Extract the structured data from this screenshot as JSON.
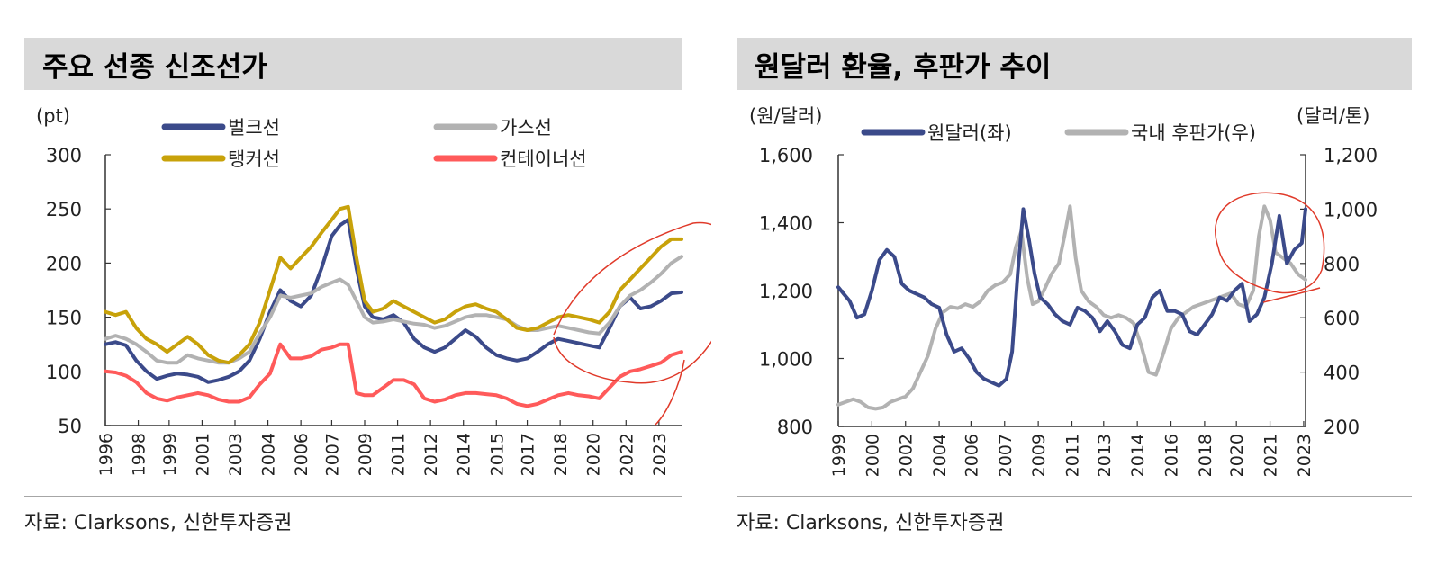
{
  "left": {
    "title": "주요 선종 신조선가",
    "source": "자료: Clarksons, 신한투자증권",
    "chart_data": {
      "type": "line",
      "title": "주요 선종 신조선가",
      "ylabel": "(pt)",
      "ylim": [
        50,
        300
      ],
      "yticks": [
        "300",
        "250",
        "200",
        "150",
        "100",
        "50"
      ],
      "ytick_values": [
        300,
        250,
        200,
        150,
        100,
        50
      ],
      "xlim": [
        1996,
        2024.0
      ],
      "xtick_labels": [
        "1996",
        "1998",
        "1999",
        "2001",
        "2003",
        "2004",
        "2006",
        "2007",
        "2009",
        "2011",
        "2012",
        "2014",
        "2015",
        "2017",
        "2018",
        "2020",
        "2022",
        "2023"
      ],
      "xtick_values": [
        1996,
        1997.6,
        1999.1,
        2000.7,
        2002.3,
        2003.9,
        2005.5,
        2007.0,
        2008.6,
        2010.2,
        2011.8,
        2013.4,
        2015.0,
        2016.5,
        2018.1,
        2019.7,
        2021.3,
        2022.9
      ],
      "grid": false,
      "legend": "top",
      "series": [
        {
          "name": "벌크선",
          "color": "#3b4a8a",
          "x": [
            1996,
            1996.5,
            1997,
            1997.5,
            1998,
            1998.5,
            1999,
            1999.5,
            2000,
            2000.5,
            2001,
            2001.5,
            2002,
            2002.5,
            2003,
            2003.5,
            2004,
            2004.5,
            2005,
            2005.5,
            2006,
            2006.5,
            2007,
            2007.4,
            2007.8,
            2008.2,
            2008.6,
            2009,
            2009.5,
            2010,
            2010.5,
            2011,
            2011.5,
            2012,
            2012.5,
            2013,
            2013.5,
            2014,
            2014.5,
            2015,
            2015.5,
            2016,
            2016.5,
            2017,
            2017.5,
            2018,
            2018.5,
            2019,
            2019.5,
            2020,
            2020.5,
            2021,
            2021.5,
            2022,
            2022.5,
            2023,
            2023.5,
            2024
          ],
          "y": [
            125,
            127,
            124,
            110,
            100,
            93,
            96,
            98,
            97,
            95,
            90,
            92,
            95,
            100,
            110,
            130,
            155,
            175,
            165,
            160,
            170,
            195,
            225,
            235,
            240,
            195,
            160,
            150,
            148,
            152,
            145,
            130,
            122,
            118,
            122,
            130,
            138,
            132,
            122,
            115,
            112,
            110,
            112,
            118,
            125,
            130,
            128,
            126,
            124,
            122,
            140,
            160,
            168,
            158,
            160,
            165,
            172,
            173
          ]
        },
        {
          "name": "가스선",
          "color": "#b2b2b2",
          "x": [
            1996,
            1996.5,
            1997,
            1997.5,
            1998,
            1998.5,
            1999,
            1999.5,
            2000,
            2000.5,
            2001,
            2001.5,
            2002,
            2002.5,
            2003,
            2003.5,
            2004,
            2004.5,
            2005,
            2005.5,
            2006,
            2006.5,
            2007,
            2007.4,
            2007.8,
            2008.2,
            2008.6,
            2009,
            2009.5,
            2010,
            2010.5,
            2011,
            2011.5,
            2012,
            2012.5,
            2013,
            2013.5,
            2014,
            2014.5,
            2015,
            2015.5,
            2016,
            2016.5,
            2017,
            2017.5,
            2018,
            2018.5,
            2019,
            2019.5,
            2020,
            2020.5,
            2021,
            2021.5,
            2022,
            2022.5,
            2023,
            2023.5,
            2024
          ],
          "y": [
            130,
            133,
            130,
            125,
            118,
            110,
            108,
            108,
            115,
            112,
            110,
            108,
            108,
            112,
            118,
            135,
            150,
            170,
            168,
            170,
            172,
            178,
            182,
            185,
            180,
            165,
            150,
            145,
            146,
            148,
            146,
            144,
            143,
            140,
            142,
            146,
            150,
            152,
            152,
            150,
            148,
            142,
            138,
            138,
            140,
            142,
            140,
            138,
            136,
            135,
            145,
            160,
            170,
            175,
            182,
            190,
            200,
            206
          ]
        },
        {
          "name": "탱커선",
          "color": "#c8a20a",
          "x": [
            1996,
            1996.5,
            1997,
            1997.5,
            1998,
            1998.5,
            1999,
            1999.5,
            2000,
            2000.5,
            2001,
            2001.5,
            2002,
            2002.5,
            2003,
            2003.5,
            2004,
            2004.5,
            2005,
            2005.5,
            2006,
            2006.5,
            2007,
            2007.4,
            2007.8,
            2008.2,
            2008.6,
            2009,
            2009.5,
            2010,
            2010.5,
            2011,
            2011.5,
            2012,
            2012.5,
            2013,
            2013.5,
            2014,
            2014.5,
            2015,
            2015.5,
            2016,
            2016.5,
            2017,
            2017.5,
            2018,
            2018.5,
            2019,
            2019.5,
            2020,
            2020.5,
            2021,
            2021.5,
            2022,
            2022.5,
            2023,
            2023.5,
            2024
          ],
          "y": [
            155,
            152,
            155,
            140,
            130,
            125,
            118,
            125,
            132,
            125,
            115,
            110,
            108,
            115,
            125,
            145,
            175,
            205,
            195,
            205,
            215,
            228,
            240,
            250,
            252,
            205,
            165,
            155,
            158,
            165,
            160,
            155,
            150,
            145,
            148,
            155,
            160,
            162,
            158,
            155,
            148,
            140,
            138,
            140,
            145,
            150,
            152,
            150,
            148,
            145,
            155,
            175,
            185,
            195,
            205,
            215,
            222,
            222
          ]
        },
        {
          "name": "컨테이너선",
          "color": "#ff5a5a",
          "x": [
            1996,
            1996.5,
            1997,
            1997.5,
            1998,
            1998.5,
            1999,
            1999.5,
            2000,
            2000.5,
            2001,
            2001.5,
            2002,
            2002.5,
            2003,
            2003.5,
            2004,
            2004.5,
            2005,
            2005.5,
            2006,
            2006.5,
            2007,
            2007.4,
            2007.8,
            2008.2,
            2008.6,
            2009,
            2009.5,
            2010,
            2010.5,
            2011,
            2011.5,
            2012,
            2012.5,
            2013,
            2013.5,
            2014,
            2014.5,
            2015,
            2015.5,
            2016,
            2016.5,
            2017,
            2017.5,
            2018,
            2018.5,
            2019,
            2019.5,
            2020,
            2020.5,
            2021,
            2021.5,
            2022,
            2022.5,
            2023,
            2023.5,
            2024
          ],
          "y": [
            100,
            99,
            96,
            90,
            80,
            75,
            73,
            76,
            78,
            80,
            78,
            74,
            72,
            72,
            76,
            88,
            98,
            125,
            112,
            112,
            114,
            120,
            122,
            125,
            125,
            80,
            78,
            78,
            85,
            92,
            92,
            88,
            75,
            72,
            74,
            78,
            80,
            80,
            79,
            78,
            75,
            70,
            68,
            70,
            74,
            78,
            80,
            78,
            77,
            75,
            85,
            95,
            100,
            102,
            105,
            108,
            115,
            118
          ]
        }
      ]
    }
  },
  "right": {
    "title": "원달러 환율, 후판가 추이",
    "source": "자료: Clarksons, 신한투자증권",
    "chart_data": {
      "type": "line",
      "title": "원달러 환율, 후판가 추이",
      "ylabel_left": "(원/달러)",
      "ylabel_right": "(달러/톤)",
      "ylim_left": [
        800,
        1600
      ],
      "ylim_right": [
        200,
        1200
      ],
      "yticks_left": [
        "1,600",
        "1,400",
        "1,200",
        "1,000",
        "800"
      ],
      "ytick_values_left": [
        1600,
        1400,
        1200,
        1000,
        800
      ],
      "yticks_right": [
        "1,200",
        "1,000",
        "800",
        "600",
        "400",
        "200"
      ],
      "ytick_values_right": [
        1200,
        1000,
        800,
        600,
        400,
        200
      ],
      "xlim": [
        1999,
        2024.0
      ],
      "xtick_labels": [
        "1999",
        "2000",
        "2002",
        "2004",
        "2006",
        "2007",
        "2009",
        "2011",
        "2013",
        "2014",
        "2016",
        "2018",
        "2020",
        "2021",
        "2023"
      ],
      "xtick_values": [
        1999,
        2000.8,
        2002.6,
        2004.4,
        2006.1,
        2007.9,
        2009.7,
        2011.5,
        2013.2,
        2015.0,
        2016.8,
        2018.6,
        2020.3,
        2022.1,
        2023.9
      ],
      "grid": false,
      "legend": "top",
      "series": [
        {
          "name": "원달러(좌)",
          "color": "#3b4a8a",
          "axis": "left",
          "x": [
            1999,
            1999.3,
            1999.6,
            2000,
            2000.4,
            2000.8,
            2001.2,
            2001.6,
            2002,
            2002.4,
            2002.8,
            2003.2,
            2003.6,
            2004,
            2004.4,
            2004.8,
            2005.2,
            2005.6,
            2006,
            2006.4,
            2006.8,
            2007.2,
            2007.6,
            2008,
            2008.3,
            2008.6,
            2008.9,
            2009.2,
            2009.5,
            2009.8,
            2010.2,
            2010.6,
            2011,
            2011.4,
            2011.8,
            2012.2,
            2012.6,
            2013,
            2013.4,
            2013.8,
            2014.2,
            2014.6,
            2015,
            2015.4,
            2015.8,
            2016.2,
            2016.6,
            2017,
            2017.4,
            2017.8,
            2018.2,
            2018.6,
            2019,
            2019.4,
            2019.8,
            2020.2,
            2020.6,
            2021,
            2021.4,
            2021.8,
            2022.2,
            2022.6,
            2023,
            2023.4,
            2023.8,
            2024
          ],
          "y": [
            1210,
            1190,
            1170,
            1120,
            1130,
            1200,
            1290,
            1320,
            1300,
            1220,
            1200,
            1190,
            1180,
            1160,
            1150,
            1070,
            1020,
            1030,
            1000,
            960,
            940,
            930,
            920,
            940,
            1020,
            1250,
            1440,
            1350,
            1250,
            1180,
            1160,
            1130,
            1110,
            1100,
            1150,
            1140,
            1120,
            1080,
            1110,
            1080,
            1040,
            1030,
            1100,
            1120,
            1180,
            1200,
            1140,
            1140,
            1130,
            1080,
            1070,
            1100,
            1130,
            1180,
            1170,
            1200,
            1220,
            1110,
            1130,
            1180,
            1280,
            1420,
            1280,
            1320,
            1340,
            1440
          ]
        },
        {
          "name": "국내 후판가(우)",
          "color": "#b2b2b2",
          "axis": "right",
          "x": [
            1999,
            1999.4,
            1999.8,
            2000.2,
            2000.6,
            2001,
            2001.4,
            2001.8,
            2002.2,
            2002.6,
            2003,
            2003.4,
            2003.8,
            2004.2,
            2004.6,
            2005,
            2005.4,
            2005.8,
            2006.2,
            2006.6,
            2007,
            2007.4,
            2007.8,
            2008.2,
            2008.5,
            2008.8,
            2009.1,
            2009.4,
            2009.7,
            2010,
            2010.4,
            2010.8,
            2011.1,
            2011.4,
            2011.7,
            2012,
            2012.4,
            2012.8,
            2013.2,
            2013.6,
            2014,
            2014.4,
            2014.8,
            2015.2,
            2015.6,
            2016,
            2016.4,
            2016.8,
            2017.2,
            2017.6,
            2018,
            2018.4,
            2018.8,
            2019.2,
            2019.6,
            2020,
            2020.4,
            2020.8,
            2021.2,
            2021.5,
            2021.8,
            2022.1,
            2022.4,
            2022.8,
            2023.2,
            2023.6,
            2024
          ],
          "y": [
            280,
            290,
            300,
            290,
            270,
            265,
            270,
            290,
            300,
            310,
            340,
            400,
            460,
            560,
            620,
            640,
            635,
            650,
            640,
            660,
            700,
            720,
            730,
            760,
            860,
            920,
            750,
            650,
            660,
            700,
            760,
            800,
            900,
            1010,
            820,
            700,
            660,
            640,
            610,
            600,
            610,
            600,
            580,
            500,
            400,
            390,
            470,
            560,
            600,
            620,
            640,
            650,
            660,
            670,
            680,
            690,
            650,
            640,
            700,
            900,
            1010,
            960,
            840,
            820,
            800,
            760,
            740
          ]
        }
      ]
    }
  },
  "annotation_color": "#e03a2a"
}
